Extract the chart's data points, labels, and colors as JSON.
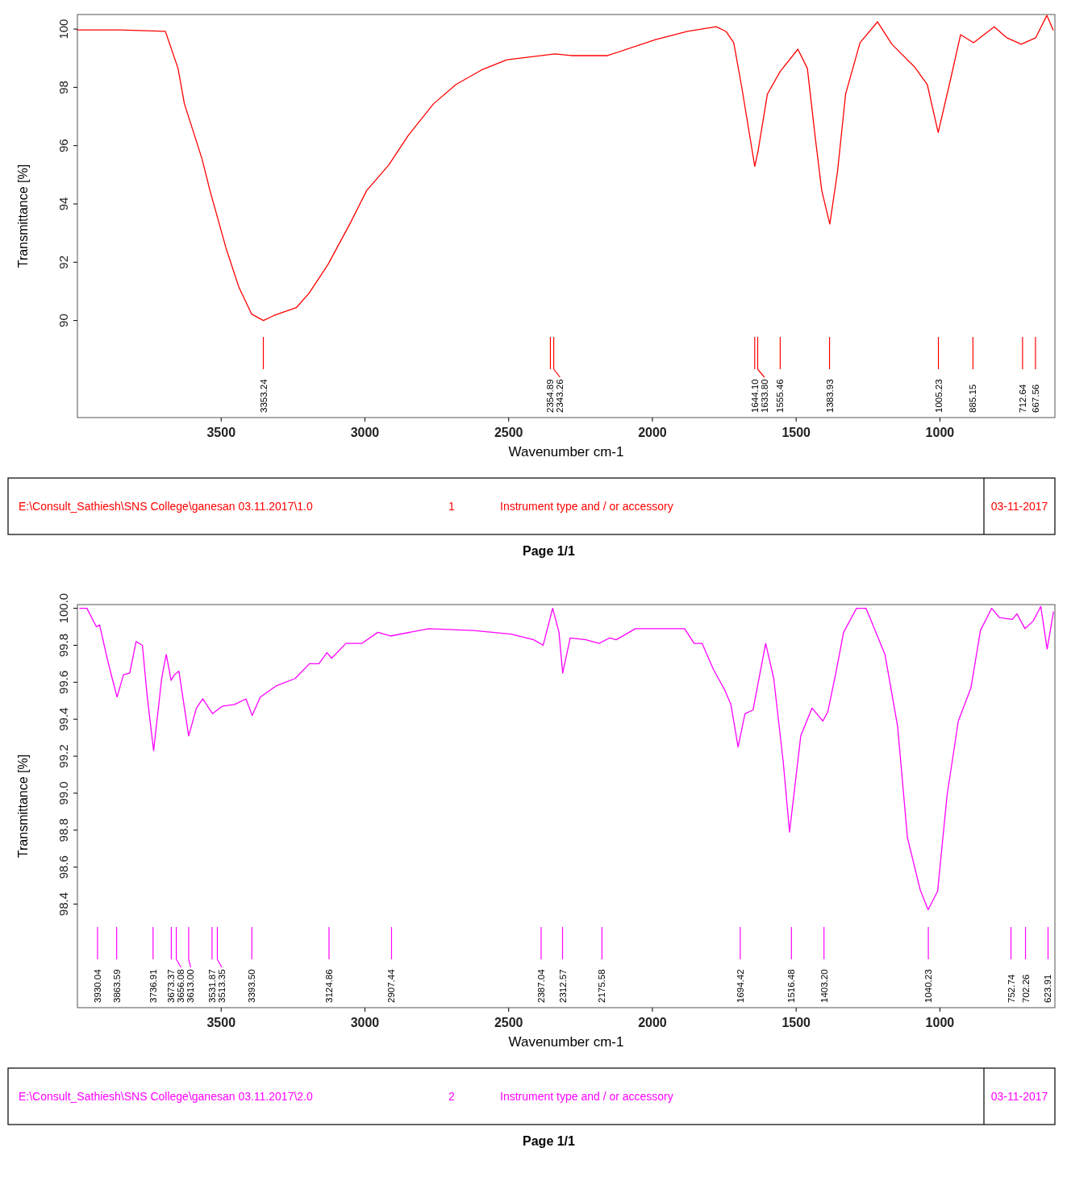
{
  "chart_data": [
    {
      "type": "line",
      "xlabel": "Wavenumber cm-1",
      "ylabel": "Transmittance [%]",
      "xlim": [
        4000,
        600
      ],
      "ylim": [
        86.67,
        100.5
      ],
      "xticks": [
        3500,
        3000,
        2500,
        2000,
        1500,
        1000
      ],
      "yticks": [
        90,
        92,
        94,
        96,
        98,
        100
      ],
      "grid": false,
      "series": [
        {
          "color": "#ff0000",
          "x": [
            4000,
            3850,
            3694,
            3650,
            3628,
            3567,
            3539,
            3483,
            3439,
            3394,
            3353,
            3317,
            3239,
            3194,
            3128,
            3050,
            2994,
            2917,
            2850,
            2761,
            2683,
            2594,
            2506,
            2339,
            2283,
            2156,
            1989,
            1878,
            1778,
            1744,
            1717,
            1689,
            1644,
            1633,
            1600,
            1556,
            1494,
            1461,
            1433,
            1411,
            1383,
            1356,
            1328,
            1278,
            1217,
            1167,
            1089,
            1044,
            1006,
            967,
            928,
            883,
            811,
            767,
            717,
            667,
            628,
            606
          ],
          "values": [
            99.97,
            99.97,
            99.92,
            98.65,
            97.44,
            95.56,
            94.46,
            92.48,
            91.16,
            90.22,
            90.0,
            90.17,
            90.44,
            90.94,
            91.93,
            93.36,
            94.46,
            95.34,
            96.34,
            97.44,
            98.1,
            98.6,
            98.95,
            99.15,
            99.09,
            99.09,
            99.64,
            99.92,
            100.08,
            99.92,
            99.53,
            97.99,
            95.29,
            95.79,
            97.77,
            98.54,
            99.31,
            98.65,
            96.23,
            94.46,
            93.31,
            95.12,
            97.77,
            99.53,
            100.25,
            99.48,
            98.71,
            98.1,
            96.45,
            98.1,
            99.81,
            99.53,
            100.08,
            99.7,
            99.48,
            99.7,
            100.47,
            99.97
          ]
        }
      ],
      "ref_lines": [
        {
          "axis": "x",
          "value": 3353.24,
          "label": "3353.24",
          "color": "#ff0000"
        },
        {
          "axis": "x",
          "value": 2354.89,
          "label": "2354.89",
          "color": "#ff0000"
        },
        {
          "axis": "x",
          "value": 2343.26,
          "label": "2343.26",
          "color": "#ff0000"
        },
        {
          "axis": "x",
          "value": 1644.1,
          "label": "1644.10",
          "color": "#ff0000"
        },
        {
          "axis": "x",
          "value": 1633.8,
          "label": "1633.80",
          "color": "#ff0000"
        },
        {
          "axis": "x",
          "value": 1555.46,
          "label": "1555.46",
          "color": "#ff0000"
        },
        {
          "axis": "x",
          "value": 1383.93,
          "label": "1383.93",
          "color": "#ff0000"
        },
        {
          "axis": "x",
          "value": 1005.23,
          "label": "1005.23",
          "color": "#ff0000"
        },
        {
          "axis": "x",
          "value": 885.15,
          "label": "885.15",
          "color": "#ff0000"
        },
        {
          "axis": "x",
          "value": 712.64,
          "label": "712.64",
          "color": "#ff0000"
        },
        {
          "axis": "x",
          "value": 667.56,
          "label": "667.56",
          "color": "#ff0000"
        }
      ],
      "annotations": [
        "E:\\Consult_Sathiesh\\SNS College\\ganesan 03.11.2017\\1.0",
        "1",
        "Instrument type and / or accessory",
        "03-11-2017",
        "Page 1/1"
      ]
    },
    {
      "type": "line",
      "xlabel": "Wavenumber cm-1",
      "ylabel": "Transmittance [%]",
      "xlim": [
        4000,
        600
      ],
      "ylim": [
        97.84,
        100.02
      ],
      "xticks": [
        3500,
        3000,
        2500,
        2000,
        1500,
        1000
      ],
      "yticks": [
        {
          "value": 100,
          "label": "100.0"
        },
        99.8,
        99.6,
        99.4,
        99.2,
        {
          "value": 99,
          "label": "99.0"
        },
        98.8,
        98.6,
        98.4
      ],
      "grid": false,
      "series": [
        {
          "color": "#ff00ff",
          "x": [
            3992,
            3967,
            3934,
            3923,
            3895,
            3879,
            3862,
            3840,
            3818,
            3796,
            3774,
            3757,
            3735,
            3707,
            3691,
            3674,
            3663,
            3647,
            3613,
            3586,
            3564,
            3530,
            3497,
            3453,
            3414,
            3392,
            3364,
            3309,
            3243,
            3193,
            3160,
            3132,
            3116,
            3066,
            3011,
            2955,
            2911,
            2778,
            2623,
            2491,
            2413,
            2380,
            2347,
            2325,
            2312,
            2286,
            2231,
            2186,
            2148,
            2126,
            2059,
            1971,
            1888,
            1855,
            1827,
            1788,
            1749,
            1727,
            1702,
            1678,
            1650,
            1633,
            1606,
            1578,
            1545,
            1523,
            1484,
            1445,
            1407,
            1390,
            1362,
            1335,
            1290,
            1257,
            1191,
            1147,
            1113,
            1069,
            1041,
            1008,
            975,
            936,
            892,
            859,
            820,
            793,
            748,
            732,
            704,
            676,
            649,
            627,
            605
          ],
          "values": [
            100.0,
            100.0,
            99.9,
            99.91,
            99.72,
            99.62,
            99.52,
            99.64,
            99.65,
            99.82,
            99.8,
            99.52,
            99.23,
            99.62,
            99.75,
            99.61,
            99.64,
            99.66,
            99.31,
            99.46,
            99.51,
            99.43,
            99.47,
            99.48,
            99.51,
            99.42,
            99.52,
            99.58,
            99.62,
            99.7,
            99.7,
            99.76,
            99.73,
            99.81,
            99.81,
            99.87,
            99.85,
            99.89,
            99.88,
            99.86,
            99.83,
            99.8,
            100.0,
            99.87,
            99.65,
            99.84,
            99.83,
            99.81,
            99.84,
            99.83,
            99.89,
            99.89,
            99.89,
            99.81,
            99.81,
            99.67,
            99.56,
            99.48,
            99.25,
            99.43,
            99.45,
            99.59,
            99.81,
            99.62,
            99.17,
            98.79,
            99.31,
            99.46,
            99.39,
            99.44,
            99.65,
            99.87,
            100.0,
            100.0,
            99.75,
            99.36,
            98.76,
            98.48,
            98.37,
            98.47,
            98.99,
            99.39,
            99.57,
            99.88,
            100.0,
            99.95,
            99.94,
            99.97,
            99.89,
            99.93,
            100.01,
            99.78,
            99.98
          ]
        }
      ],
      "ref_lines": [
        {
          "axis": "x",
          "value": 3930.04,
          "label": "3930.04",
          "color": "#ff00ff"
        },
        {
          "axis": "x",
          "value": 3863.59,
          "label": "3863.59",
          "color": "#ff00ff"
        },
        {
          "axis": "x",
          "value": 3736.91,
          "label": "3736.91",
          "color": "#ff00ff"
        },
        {
          "axis": "x",
          "value": 3673.37,
          "label": "3673.37",
          "color": "#ff00ff"
        },
        {
          "axis": "x",
          "value": 3656.08,
          "label": "3656.08",
          "color": "#ff00ff"
        },
        {
          "axis": "x",
          "value": 3613.0,
          "label": "3613.00",
          "color": "#ff00ff"
        },
        {
          "axis": "x",
          "value": 3531.87,
          "label": "3531.87",
          "color": "#ff00ff"
        },
        {
          "axis": "x",
          "value": 3513.35,
          "label": "3513.35",
          "color": "#ff00ff"
        },
        {
          "axis": "x",
          "value": 3393.5,
          "label": "3393.50",
          "color": "#ff00ff"
        },
        {
          "axis": "x",
          "value": 3124.86,
          "label": "3124.86",
          "color": "#ff00ff"
        },
        {
          "axis": "x",
          "value": 2907.44,
          "label": "2907.44",
          "color": "#ff00ff"
        },
        {
          "axis": "x",
          "value": 2387.04,
          "label": "2387.04",
          "color": "#ff00ff"
        },
        {
          "axis": "x",
          "value": 2312.57,
          "label": "2312.57",
          "color": "#ff00ff"
        },
        {
          "axis": "x",
          "value": 2175.58,
          "label": "2175.58",
          "color": "#ff00ff"
        },
        {
          "axis": "x",
          "value": 1694.42,
          "label": "1694.42",
          "color": "#ff00ff"
        },
        {
          "axis": "x",
          "value": 1516.48,
          "label": "1516.48",
          "color": "#ff00ff"
        },
        {
          "axis": "x",
          "value": 1403.2,
          "label": "1403.20",
          "color": "#ff00ff"
        },
        {
          "axis": "x",
          "value": 1040.23,
          "label": "1040.23",
          "color": "#ff00ff"
        },
        {
          "axis": "x",
          "value": 752.74,
          "label": "752.74",
          "color": "#ff00ff"
        },
        {
          "axis": "x",
          "value": 702.26,
          "label": "702.26",
          "color": "#ff00ff"
        },
        {
          "axis": "x",
          "value": 623.91,
          "label": "623.91",
          "color": "#ff00ff"
        }
      ],
      "annotations": [
        "E:\\Consult_Sathiesh\\SNS College\\ganesan 03.11.2017\\2.0",
        "2",
        "Instrument type and / or accessory",
        "03-11-2017",
        "Page 1/1"
      ]
    }
  ]
}
